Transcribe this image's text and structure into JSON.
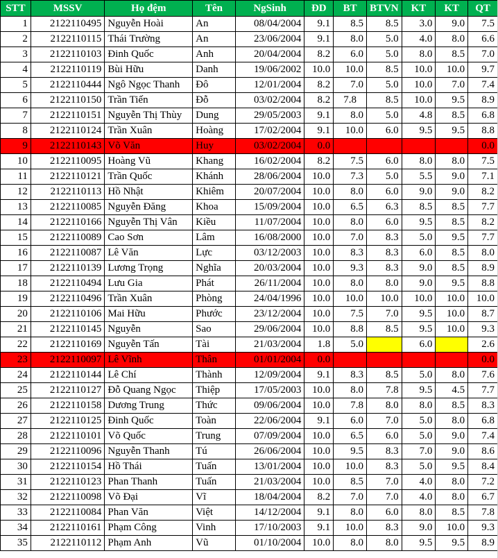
{
  "headers": [
    "STT",
    "MSSV",
    "Họ đệm",
    "Tên",
    "NgSinh",
    "ĐD",
    "BT",
    "BTVN",
    "KT",
    "KT",
    "QT"
  ],
  "rows": [
    {
      "stt": "1",
      "mssv": "2122110495",
      "ho": "Nguyễn Hoài",
      "ten": "An",
      "ns": "08/04/2004",
      "dd": "9.1",
      "bt": "8.5",
      "btvn": "8.5",
      "kt1": "3.0",
      "kt2": "9.0",
      "qt": "7.5"
    },
    {
      "stt": "2",
      "mssv": "2122110115",
      "ho": "Thái Trường",
      "ten": "An",
      "ns": "23/06/2004",
      "dd": "9.1",
      "bt": "8.0",
      "btvn": "5.0",
      "kt1": "4.0",
      "kt2": "8.0",
      "qt": "6.6"
    },
    {
      "stt": "3",
      "mssv": "2122110103",
      "ho": "Đinh Quốc",
      "ten": "Anh",
      "ns": "20/04/2004",
      "dd": "8.2",
      "bt": "6.0",
      "btvn": "5.0",
      "kt1": "8.0",
      "kt2": "8.5",
      "qt": "7.0"
    },
    {
      "stt": "4",
      "mssv": "2122110119",
      "ho": "Bùi Hữu",
      "ten": "Danh",
      "ns": "19/06/2002",
      "dd": "10.0",
      "bt": "10.0",
      "btvn": "8.5",
      "kt1": "10.0",
      "kt2": "10.0",
      "qt": "9.7"
    },
    {
      "stt": "5",
      "mssv": "2122110444",
      "ho": "Ngô Ngọc Thanh",
      "ten": "Đô",
      "ns": "12/01/2004",
      "dd": "8.2",
      "bt": "7.0",
      "btvn": "5.0",
      "kt1": "10.0",
      "kt2": "7.0",
      "qt": "7.4"
    },
    {
      "stt": "6",
      "mssv": "2122110150",
      "ho": "Trần Tiến",
      "ten": "Đỗ",
      "ns": "03/02/2004",
      "dd": "8.2",
      "bt": "7.8",
      "btvn": "8.5",
      "kt1": "10.0",
      "kt2": "9.5",
      "qt": "8.9",
      "btLeft": true
    },
    {
      "stt": "7",
      "mssv": "2122110151",
      "ho": "Nguyễn Thị Thùy",
      "ten": "Dung",
      "ns": "29/05/2003",
      "dd": "9.1",
      "bt": "8.0",
      "btvn": "5.0",
      "kt1": "4.8",
      "kt2": "8.5",
      "qt": "6.8"
    },
    {
      "stt": "8",
      "mssv": "2122110124",
      "ho": "Trần Xuân",
      "ten": "Hoàng",
      "ns": "17/02/2004",
      "dd": "9.1",
      "bt": "10.0",
      "btvn": "6.0",
      "kt1": "9.5",
      "kt2": "9.5",
      "qt": "8.8"
    },
    {
      "stt": "9",
      "mssv": "2122110143",
      "ho": "Võ Văn",
      "ten": "Huy",
      "ns": "03/02/2004",
      "dd": "0.0",
      "bt": "",
      "btvn": "",
      "kt1": "",
      "kt2": "",
      "qt": "0.0",
      "red": true
    },
    {
      "stt": "10",
      "mssv": "2122110095",
      "ho": "Hoàng Vũ",
      "ten": "Khang",
      "ns": "16/02/2004",
      "dd": "8.2",
      "bt": "7.5",
      "btvn": "6.0",
      "kt1": "8.0",
      "kt2": "8.0",
      "qt": "7.5"
    },
    {
      "stt": "11",
      "mssv": "2122110121",
      "ho": "Trần Quốc",
      "ten": "Khánh",
      "ns": "28/06/2004",
      "dd": "10.0",
      "bt": "7.3",
      "btvn": "5.0",
      "kt1": "5.5",
      "kt2": "9.0",
      "qt": "7.1"
    },
    {
      "stt": "12",
      "mssv": "2122110113",
      "ho": "Hồ Nhật",
      "ten": "Khiêm",
      "ns": "20/07/2004",
      "dd": "10.0",
      "bt": "8.0",
      "btvn": "6.0",
      "kt1": "9.0",
      "kt2": "9.0",
      "qt": "8.2"
    },
    {
      "stt": "13",
      "mssv": "2122110085",
      "ho": "Nguyễn Đăng",
      "ten": "Khoa",
      "ns": "15/09/2004",
      "dd": "10.0",
      "bt": "6.5",
      "btvn": "6.3",
      "kt1": "8.5",
      "kt2": "8.5",
      "qt": "7.7"
    },
    {
      "stt": "14",
      "mssv": "2122110166",
      "ho": "Nguyễn Thị Vân",
      "ten": "Kiều",
      "ns": "11/07/2004",
      "dd": "10.0",
      "bt": "8.0",
      "btvn": "6.0",
      "kt1": "9.5",
      "kt2": "8.5",
      "qt": "8.2"
    },
    {
      "stt": "15",
      "mssv": "2122110089",
      "ho": "Cao Sơn",
      "ten": "Lâm",
      "ns": "16/08/2000",
      "dd": "10.0",
      "bt": "7.0",
      "btvn": "8.3",
      "kt1": "5.0",
      "kt2": "9.5",
      "qt": "7.7"
    },
    {
      "stt": "16",
      "mssv": "2122110087",
      "ho": "Lê Văn",
      "ten": "Lực",
      "ns": "03/12/2003",
      "dd": "10.0",
      "bt": "8.3",
      "btvn": "8.3",
      "kt1": "6.0",
      "kt2": "8.5",
      "qt": "8.0"
    },
    {
      "stt": "17",
      "mssv": "2122110139",
      "ho": "Lương Trọng",
      "ten": "Nghĩa",
      "ns": "20/03/2004",
      "dd": "10.0",
      "bt": "9.3",
      "btvn": "8.3",
      "kt1": "9.0",
      "kt2": "8.5",
      "qt": "8.9"
    },
    {
      "stt": "18",
      "mssv": "2122110494",
      "ho": "Lưu Gia",
      "ten": "Phát",
      "ns": "26/11/2004",
      "dd": "10.0",
      "bt": "8.0",
      "btvn": "8.0",
      "kt1": "9.0",
      "kt2": "9.5",
      "qt": "8.8"
    },
    {
      "stt": "19",
      "mssv": "2122110496",
      "ho": "Trần Xuân",
      "ten": "Phòng",
      "ns": "24/04/1996",
      "dd": "10.0",
      "bt": "10.0",
      "btvn": "10.0",
      "kt1": "10.0",
      "kt2": "10.0",
      "qt": "10.0"
    },
    {
      "stt": "20",
      "mssv": "2122110106",
      "ho": "Mai Hữu",
      "ten": "Phước",
      "ns": "23/12/2004",
      "dd": "10.0",
      "bt": "7.5",
      "btvn": "7.0",
      "kt1": "9.5",
      "kt2": "10.0",
      "qt": "8.7"
    },
    {
      "stt": "21",
      "mssv": "2122110145",
      "ho": "Nguyễn",
      "ten": "Sao",
      "ns": "29/06/2004",
      "dd": "10.0",
      "bt": "8.8",
      "btvn": "8.5",
      "kt1": "9.5",
      "kt2": "10.0",
      "qt": "9.3"
    },
    {
      "stt": "22",
      "mssv": "2122110169",
      "ho": "Nguyễn Tấn",
      "ten": "Tài",
      "ns": "21/03/2004",
      "dd": "1.8",
      "bt": "5.0",
      "btvn": "",
      "kt1": "6.0",
      "kt2": "",
      "qt": "2.6",
      "yellow": [
        "btvn",
        "kt2"
      ]
    },
    {
      "stt": "23",
      "mssv": "2122110097",
      "ho": "Lê Vĩnh",
      "ten": "Thân",
      "ns": "01/01/2004",
      "dd": "0.0",
      "bt": "",
      "btvn": "",
      "kt1": "",
      "kt2": "",
      "qt": "0.0",
      "red": true
    },
    {
      "stt": "24",
      "mssv": "2122110144",
      "ho": "Lê Chí",
      "ten": "Thành",
      "ns": "12/09/2004",
      "dd": "9.1",
      "bt": "8.3",
      "btvn": "8.5",
      "kt1": "5.0",
      "kt2": "8.0",
      "qt": "7.6"
    },
    {
      "stt": "25",
      "mssv": "2122110127",
      "ho": "Đỗ Quang Ngọc",
      "ten": "Thiệp",
      "ns": "17/05/2003",
      "dd": "10.0",
      "bt": "8.0",
      "btvn": "7.8",
      "kt1": "9.5",
      "kt2": "4.5",
      "qt": "7.7"
    },
    {
      "stt": "26",
      "mssv": "2122110158",
      "ho": "Dương Trung",
      "ten": "Thức",
      "ns": "09/06/2004",
      "dd": "10.0",
      "bt": "7.8",
      "btvn": "8.0",
      "kt1": "8.0",
      "kt2": "8.5",
      "qt": "8.3"
    },
    {
      "stt": "27",
      "mssv": "2122110125",
      "ho": "Đinh Quốc",
      "ten": "Toàn",
      "ns": "22/06/2004",
      "dd": "9.1",
      "bt": "6.0",
      "btvn": "7.0",
      "kt1": "5.0",
      "kt2": "8.0",
      "qt": "6.8"
    },
    {
      "stt": "28",
      "mssv": "2122110101",
      "ho": "Võ Quốc",
      "ten": "Trung",
      "ns": "07/09/2004",
      "dd": "10.0",
      "bt": "6.5",
      "btvn": "6.0",
      "kt1": "5.0",
      "kt2": "9.0",
      "qt": "7.4"
    },
    {
      "stt": "29",
      "mssv": "2122110096",
      "ho": "Nguyễn Thanh",
      "ten": "Tú",
      "ns": "26/06/2004",
      "dd": "10.0",
      "bt": "9.5",
      "btvn": "8.3",
      "kt1": "7.0",
      "kt2": "9.0",
      "qt": "8.6"
    },
    {
      "stt": "30",
      "mssv": "2122110154",
      "ho": "Hồ Thái",
      "ten": "Tuấn",
      "ns": "13/01/2004",
      "dd": "10.0",
      "bt": "10.0",
      "btvn": "8.3",
      "kt1": "5.0",
      "kt2": "9.5",
      "qt": "8.4"
    },
    {
      "stt": "31",
      "mssv": "2122110123",
      "ho": "Phan Thanh",
      "ten": "Tuấn",
      "ns": "21/03/2004",
      "dd": "10.0",
      "bt": "8.5",
      "btvn": "7.0",
      "kt1": "4.0",
      "kt2": "8.0",
      "qt": "7.2"
    },
    {
      "stt": "32",
      "mssv": "2122110098",
      "ho": "Võ Đại",
      "ten": "Vĩ",
      "ns": "18/04/2004",
      "dd": "8.2",
      "bt": "7.0",
      "btvn": "7.0",
      "kt1": "4.0",
      "kt2": "8.0",
      "qt": "6.7"
    },
    {
      "stt": "33",
      "mssv": "2122110084",
      "ho": "Phan Văn",
      "ten": "Việt",
      "ns": "14/12/2004",
      "dd": "9.1",
      "bt": "8.0",
      "btvn": "6.0",
      "kt1": "8.0",
      "kt2": "8.5",
      "qt": "7.8"
    },
    {
      "stt": "34",
      "mssv": "2122110161",
      "ho": "Phạm Công",
      "ten": "Vinh",
      "ns": "17/10/2003",
      "dd": "9.1",
      "bt": "10.0",
      "btvn": "8.3",
      "kt1": "9.0",
      "kt2": "10.0",
      "qt": "9.3"
    },
    {
      "stt": "35",
      "mssv": "2122110112",
      "ho": "Phạm Anh",
      "ten": "Vũ",
      "ns": "01/10/2004",
      "dd": "10.0",
      "bt": "8.0",
      "btvn": "8.0",
      "kt1": "9.5",
      "kt2": "9.5",
      "qt": "8.9"
    }
  ],
  "colors": {
    "header_bg": "#00b050",
    "header_text": "#ffffff",
    "absent_row": "#ff0000",
    "missing_cell": "#ffff00"
  }
}
